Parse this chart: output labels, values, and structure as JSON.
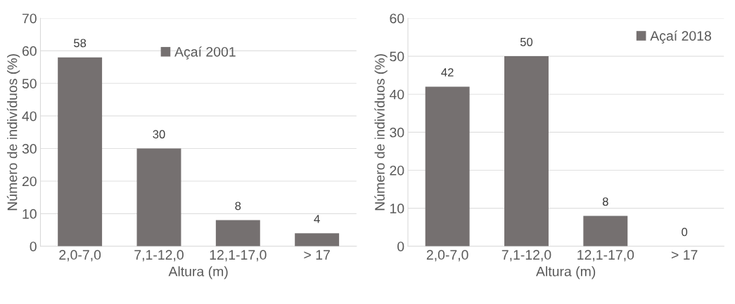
{
  "chart_data": [
    {
      "type": "bar",
      "xlabel": "Altura (m)",
      "ylabel": "Número de indivíduos (%)",
      "categories": [
        "2,0-7,0",
        "7,1-12,0",
        "12,1-17,0",
        "> 17"
      ],
      "series": [
        {
          "name": "Açaí 2001",
          "color": "#757070",
          "values": [
            58,
            30,
            8,
            4
          ]
        }
      ],
      "ylim": [
        0,
        70
      ],
      "yticks": [
        0,
        10,
        20,
        30,
        40,
        50,
        60,
        70
      ],
      "grid": "y",
      "legend": "top",
      "data_labels": true
    },
    {
      "type": "bar",
      "xlabel": "Altura (m)",
      "ylabel": "Número de indivíduos (%)",
      "categories": [
        "2,0-7,0",
        "7,1-12,0",
        "12,1-17,0",
        "> 17"
      ],
      "series": [
        {
          "name": "Açaí 2018",
          "color": "#757070",
          "values": [
            42,
            50,
            8,
            0
          ]
        }
      ],
      "ylim": [
        0,
        60
      ],
      "yticks": [
        0,
        10,
        20,
        30,
        40,
        50,
        60
      ],
      "grid": "y",
      "legend": "top right",
      "data_labels": true
    }
  ]
}
